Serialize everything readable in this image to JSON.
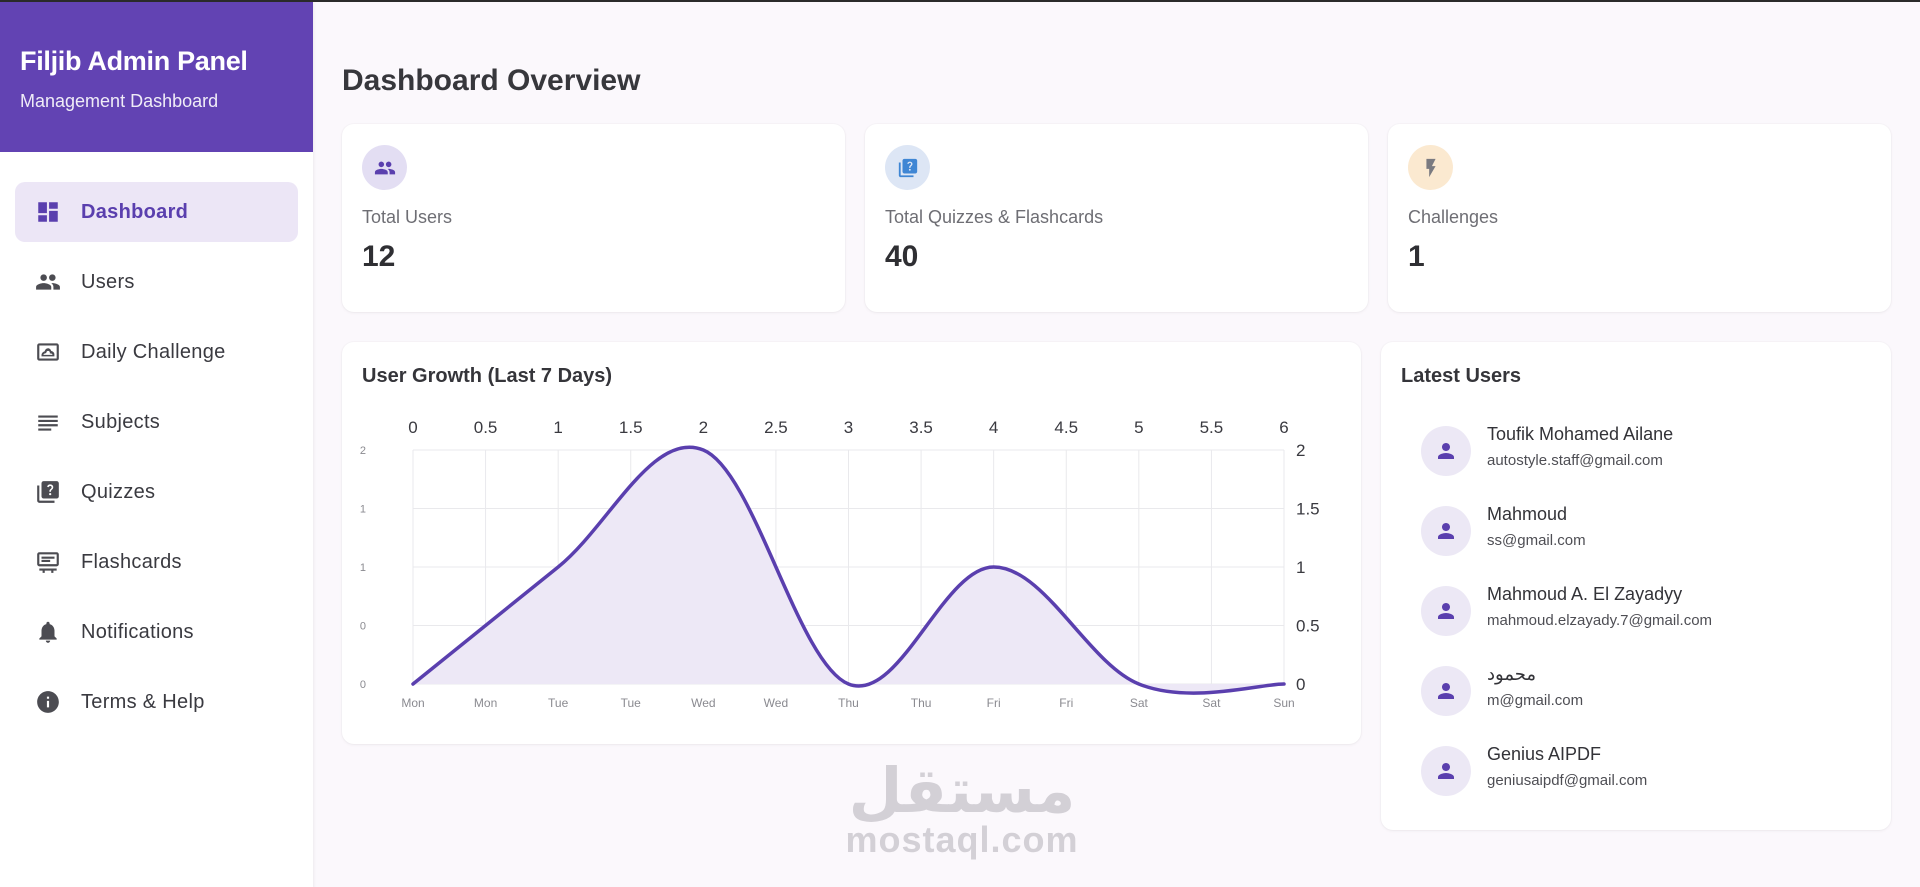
{
  "brand": {
    "title": "Filjib Admin Panel",
    "subtitle": "Management Dashboard"
  },
  "nav": [
    {
      "label": "Dashboard",
      "icon": "dashboard-icon",
      "active": true
    },
    {
      "label": "Users",
      "icon": "people-icon"
    },
    {
      "label": "Daily Challenge",
      "icon": "challenge-icon"
    },
    {
      "label": "Subjects",
      "icon": "list-icon"
    },
    {
      "label": "Quizzes",
      "icon": "quiz-icon"
    },
    {
      "label": "Flashcards",
      "icon": "flashcard-icon"
    },
    {
      "label": "Notifications",
      "icon": "bell-icon"
    },
    {
      "label": "Terms & Help",
      "icon": "info-icon"
    }
  ],
  "page_title": "Dashboard Overview",
  "stats": [
    {
      "label": "Total Users",
      "value": "12",
      "icon": "people-icon",
      "circle_color": "#e3def3",
      "icon_color": "#5a3fae"
    },
    {
      "label": "Total Quizzes & Flashcards",
      "value": "40",
      "icon": "quiz-icon",
      "circle_color": "#dde6f5",
      "icon_color": "#3f86d4"
    },
    {
      "label": "Challenges",
      "value": "1",
      "icon": "bolt-icon",
      "circle_color": "#fbe9d0",
      "icon_color": "#7a7a80"
    }
  ],
  "chart": {
    "title": "User Growth (Last 7 Days)"
  },
  "chart_data": {
    "type": "area",
    "title": "User Growth (Last 7 Days)",
    "x": [
      0,
      1,
      2,
      3,
      4,
      5,
      6
    ],
    "values": [
      0,
      1,
      2,
      0,
      1,
      0,
      0
    ],
    "x_bottom_tick_labels": [
      "Mon",
      "Mon",
      "Tue",
      "Tue",
      "Wed",
      "Wed",
      "Thu",
      "Thu",
      "Fri",
      "Fri",
      "Sat",
      "Sat",
      "Sun"
    ],
    "x_top_tick_labels": [
      "0",
      "0.5",
      "1",
      "1.5",
      "2",
      "2.5",
      "3",
      "3.5",
      "4",
      "4.5",
      "5",
      "5.5",
      "6"
    ],
    "y_left_tick_labels": [
      "2",
      "1",
      "1",
      "0",
      "0"
    ],
    "y_right_tick_labels": [
      "2",
      "1.5",
      "1",
      "0.5",
      "0"
    ],
    "xlim": [
      0,
      6
    ],
    "ylim": [
      0,
      2
    ],
    "grid": true,
    "smooth": true,
    "line_color": "#5a3fae",
    "fill_color": "#ede8f6"
  },
  "latest_users": {
    "title": "Latest Users",
    "items": [
      {
        "name": "Toufik Mohamed Ailane",
        "email": "autostyle.staff@gmail.com"
      },
      {
        "name": "Mahmoud",
        "email": "ss@gmail.com"
      },
      {
        "name": "Mahmoud A. El Zayadyy",
        "email": "mahmoud.elzayady.7@gmail.com"
      },
      {
        "name": "محمود",
        "email": "m@gmail.com"
      },
      {
        "name": "Genius AIPDF",
        "email": "geniusaipdf@gmail.com"
      }
    ]
  },
  "watermark": {
    "arabic": "مستقل",
    "latin": "mostaql.com"
  },
  "colors": {
    "primary": "#6243b3",
    "active_bg": "#ece6f6",
    "background": "#fbf8fc"
  }
}
